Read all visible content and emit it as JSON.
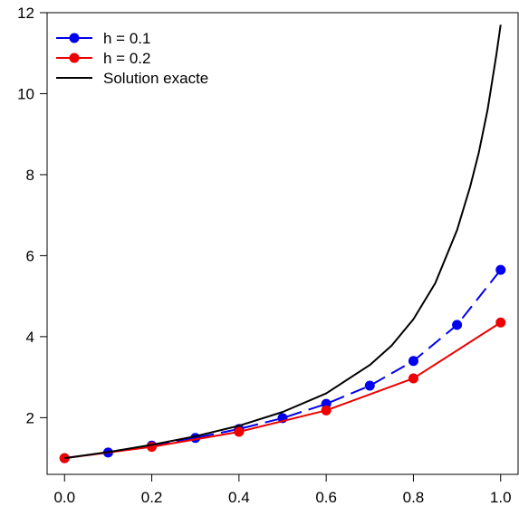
{
  "chart_data": {
    "type": "line",
    "title": "",
    "xlabel": "",
    "ylabel": "",
    "xlim": [
      -0.04,
      1.04
    ],
    "ylim": [
      0.6,
      12.0
    ],
    "x_ticks": [
      0.0,
      0.2,
      0.4,
      0.6,
      0.8,
      1.0
    ],
    "x_tick_labels": [
      "0.0",
      "0.2",
      "0.4",
      "0.6",
      "0.8",
      "1.0"
    ],
    "y_ticks": [
      2,
      4,
      6,
      8,
      10,
      12
    ],
    "y_tick_labels": [
      "2",
      "4",
      "6",
      "8",
      "10",
      "12"
    ],
    "grid": false,
    "legend_position": "top-left",
    "series": [
      {
        "name": "h = 0.1",
        "color": "#0000EE",
        "style": "dashed-with-points",
        "x": [
          0.0,
          0.1,
          0.2,
          0.3,
          0.4,
          0.5,
          0.6,
          0.7,
          0.8,
          0.9,
          1.0
        ],
        "y": [
          1.0,
          1.14,
          1.31,
          1.5,
          1.72,
          1.99,
          2.34,
          2.79,
          3.4,
          4.29,
          5.65
        ]
      },
      {
        "name": "h = 0.2",
        "color": "#EE0000",
        "style": "solid-with-points",
        "x": [
          0.0,
          0.2,
          0.4,
          0.6,
          0.8,
          1.0
        ],
        "y": [
          1.0,
          1.28,
          1.65,
          2.18,
          2.97,
          4.35
        ]
      },
      {
        "name": "Solution exacte",
        "color": "#000000",
        "style": "solid",
        "x": [
          0.0,
          0.1,
          0.2,
          0.3,
          0.4,
          0.5,
          0.6,
          0.7,
          0.75,
          0.8,
          0.85,
          0.9,
          0.93,
          0.95,
          0.97,
          0.99,
          1.0
        ],
        "y": [
          1.0,
          1.15,
          1.33,
          1.54,
          1.8,
          2.14,
          2.6,
          3.3,
          3.78,
          4.43,
          5.32,
          6.63,
          7.7,
          8.55,
          9.6,
          10.95,
          11.7
        ]
      }
    ]
  }
}
